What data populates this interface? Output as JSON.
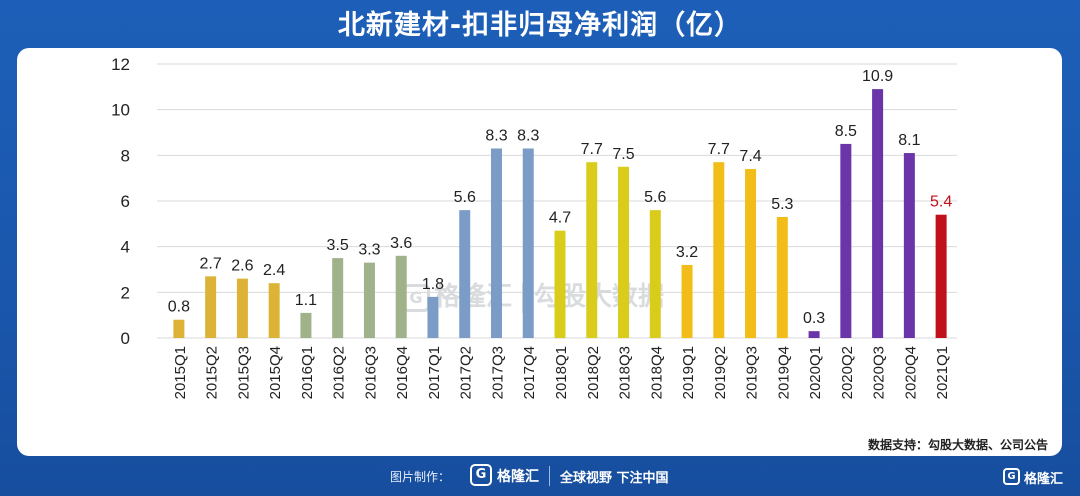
{
  "header": {
    "title": "北新建材-扣非归母净利润（亿）"
  },
  "watermark": {
    "logo_glyph": "G",
    "brand": "格隆汇",
    "product": "勾股大数据"
  },
  "source": "数据支持：勾股大数据、公司公告",
  "footer": {
    "made_by": "图片制作：",
    "logo_glyph": "G",
    "brand": "格隆汇",
    "slogan": "全球视野 下注中国",
    "corner_glyph": "G",
    "corner_brand": "格隆汇"
  },
  "chart_data": {
    "type": "bar",
    "title": "北新建材-扣非归母净利润（亿）",
    "xlabel": "",
    "ylabel": "",
    "ylim": [
      0,
      12
    ],
    "yticks": [
      0,
      2,
      4,
      6,
      8,
      10,
      12
    ],
    "grid": true,
    "categories": [
      "2015Q1",
      "2015Q2",
      "2015Q3",
      "2015Q4",
      "2016Q1",
      "2016Q2",
      "2016Q3",
      "2016Q4",
      "2017Q1",
      "2017Q2",
      "2017Q3",
      "2017Q4",
      "2018Q1",
      "2018Q2",
      "2018Q3",
      "2018Q4",
      "2019Q1",
      "2019Q2",
      "2019Q3",
      "2019Q4",
      "2020Q1",
      "2020Q2",
      "2020Q3",
      "2020Q4",
      "2021Q1"
    ],
    "values": [
      0.8,
      2.7,
      2.6,
      2.4,
      1.1,
      3.5,
      3.3,
      3.6,
      1.8,
      5.6,
      8.3,
      8.3,
      4.7,
      7.7,
      7.5,
      5.6,
      3.2,
      7.7,
      7.4,
      5.3,
      0.3,
      8.5,
      10.9,
      8.1,
      5.4
    ],
    "labels": [
      "0.8",
      "2.7",
      "2.6",
      "2.4",
      "1.1",
      "3.5",
      "3.3",
      "3.6",
      "1.8",
      "5.6",
      "8.3",
      "8.3",
      "4.7",
      "7.7",
      "7.5",
      "5.6",
      "3.2",
      "7.7",
      "7.4",
      "5.3",
      "0.3",
      "8.5",
      "10.9",
      "8.1",
      "5.4"
    ],
    "colors": [
      "#dcb336",
      "#dcb336",
      "#dcb336",
      "#dcb336",
      "#9fb28a",
      "#9fb28a",
      "#9fb28a",
      "#9fb28a",
      "#7a9cc6",
      "#7a9cc6",
      "#7a9cc6",
      "#7a9cc6",
      "#d9cc1a",
      "#d9cc1a",
      "#d9cc1a",
      "#d9cc1a",
      "#f2bd18",
      "#f2bd18",
      "#f2bd18",
      "#f2bd18",
      "#6a35a8",
      "#6a35a8",
      "#6a35a8",
      "#6a35a8",
      "#c0101a"
    ],
    "label_colors": [
      "#222222",
      "#222222",
      "#222222",
      "#222222",
      "#222222",
      "#222222",
      "#222222",
      "#222222",
      "#222222",
      "#222222",
      "#222222",
      "#222222",
      "#222222",
      "#222222",
      "#222222",
      "#222222",
      "#222222",
      "#222222",
      "#222222",
      "#222222",
      "#222222",
      "#222222",
      "#222222",
      "#222222",
      "#c0101a"
    ]
  }
}
